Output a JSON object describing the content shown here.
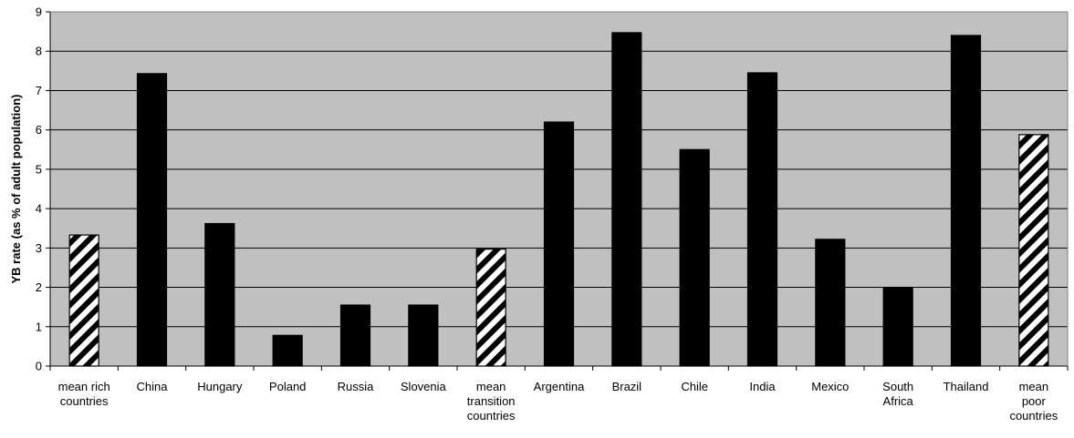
{
  "chart_data": {
    "type": "bar",
    "ylabel": "YB rate (as % of adult population)",
    "ylim": [
      0,
      9
    ],
    "yticks": [
      "0",
      "1",
      "2",
      "3",
      "4",
      "5",
      "6",
      "7",
      "8",
      "9"
    ],
    "grid": true,
    "colors": {
      "plot_bg": "#c0c0c0",
      "bar": "#000000",
      "hatch_bg": "#ffffff",
      "axis": "#000000"
    },
    "categories": [
      [
        "mean rich",
        "countries"
      ],
      [
        "China"
      ],
      [
        "Hungary"
      ],
      [
        "Poland"
      ],
      [
        "Russia"
      ],
      [
        "Slovenia"
      ],
      [
        "mean",
        "transition",
        "countries"
      ],
      [
        "Argentina"
      ],
      [
        "Brazil"
      ],
      [
        "Chile"
      ],
      [
        "India"
      ],
      [
        "Mexico"
      ],
      [
        "South",
        "Africa"
      ],
      [
        "Thailand"
      ],
      [
        "mean",
        "poor",
        "countries"
      ]
    ],
    "values": [
      3.33,
      7.43,
      3.62,
      0.78,
      1.55,
      1.55,
      2.97,
      6.2,
      8.47,
      5.5,
      7.45,
      3.22,
      2.0,
      8.4,
      5.88
    ],
    "bar_styles": [
      "hatched",
      "solid",
      "solid",
      "solid",
      "solid",
      "solid",
      "hatched",
      "solid",
      "solid",
      "solid",
      "solid",
      "solid",
      "solid",
      "solid",
      "hatched"
    ]
  }
}
